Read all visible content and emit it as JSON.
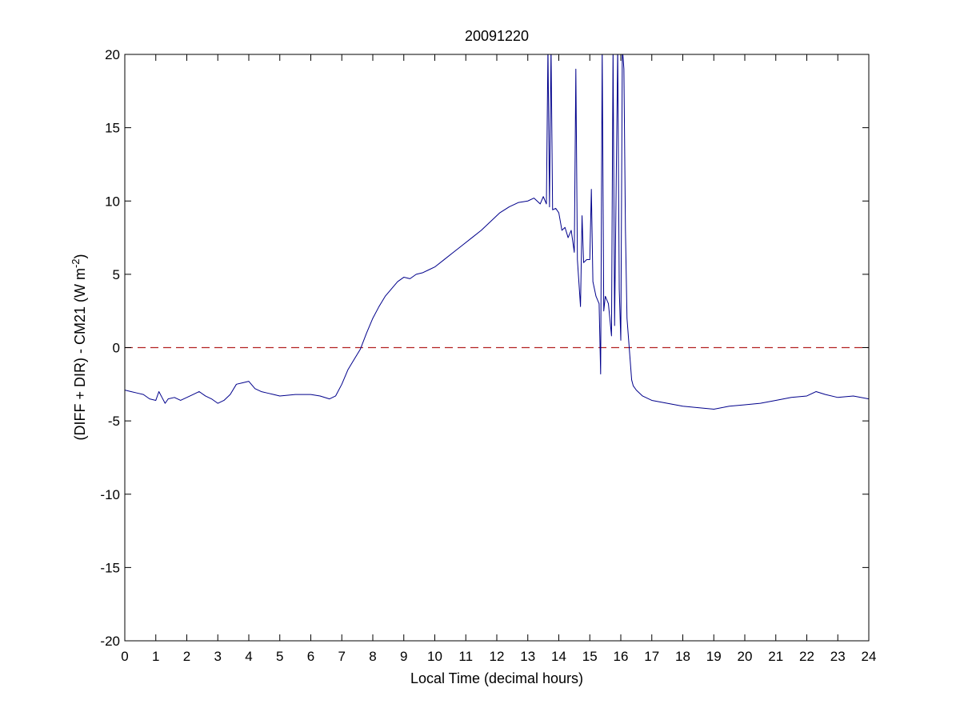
{
  "chart_data": {
    "type": "line",
    "title": "20091220",
    "xlabel": "Local Time (decimal hours)",
    "ylabel": {
      "main": "(DIFF + DIR) - CM21 (W m",
      "superscript": "-2",
      "close": ")"
    },
    "xlim": [
      0,
      24
    ],
    "ylim": [
      -20,
      20
    ],
    "xticks": [
      0,
      1,
      2,
      3,
      4,
      5,
      6,
      7,
      8,
      9,
      10,
      11,
      12,
      13,
      14,
      15,
      16,
      17,
      18,
      19,
      20,
      21,
      22,
      23,
      24
    ],
    "yticks": [
      -20,
      -15,
      -10,
      -5,
      0,
      5,
      10,
      15,
      20
    ],
    "grid": false,
    "reference_line": {
      "y": 0,
      "style": "dashed",
      "color": "#b22222"
    },
    "series": [
      {
        "color": "#00008b",
        "x": [
          0,
          0.2,
          0.4,
          0.6,
          0.8,
          1.0,
          1.1,
          1.2,
          1.3,
          1.4,
          1.6,
          1.8,
          2.0,
          2.2,
          2.4,
          2.6,
          2.8,
          3.0,
          3.2,
          3.4,
          3.6,
          3.8,
          4.0,
          4.2,
          4.4,
          4.6,
          4.8,
          5.0,
          5.5,
          6.0,
          6.3,
          6.6,
          6.8,
          7.0,
          7.2,
          7.4,
          7.6,
          7.8,
          8.0,
          8.2,
          8.4,
          8.6,
          8.8,
          9.0,
          9.2,
          9.4,
          9.6,
          9.8,
          10.0,
          10.3,
          10.6,
          10.9,
          11.2,
          11.5,
          11.8,
          12.1,
          12.4,
          12.7,
          13.0,
          13.2,
          13.4,
          13.5,
          13.6,
          13.65,
          13.7,
          13.75,
          13.8,
          13.9,
          14.0,
          14.1,
          14.2,
          14.3,
          14.4,
          14.5,
          14.55,
          14.6,
          14.7,
          14.75,
          14.8,
          14.9,
          15.0,
          15.05,
          15.1,
          15.2,
          15.3,
          15.35,
          15.4,
          15.45,
          15.5,
          15.6,
          15.7,
          15.75,
          15.8,
          15.9,
          15.95,
          16.0,
          16.05,
          16.1,
          16.15,
          16.2,
          16.3,
          16.35,
          16.4,
          16.5,
          16.7,
          17.0,
          17.5,
          18.0,
          18.5,
          19.0,
          19.5,
          20.0,
          20.5,
          21.0,
          21.5,
          22.0,
          22.3,
          22.6,
          23.0,
          23.5,
          24.0
        ],
        "y": [
          -2.9,
          -3.0,
          -3.1,
          -3.2,
          -3.5,
          -3.6,
          -3.0,
          -3.4,
          -3.8,
          -3.5,
          -3.4,
          -3.6,
          -3.4,
          -3.2,
          -3.0,
          -3.3,
          -3.5,
          -3.8,
          -3.6,
          -3.2,
          -2.5,
          -2.4,
          -2.3,
          -2.8,
          -3.0,
          -3.1,
          -3.2,
          -3.3,
          -3.2,
          -3.2,
          -3.3,
          -3.5,
          -3.3,
          -2.5,
          -1.5,
          -0.8,
          -0.1,
          1.0,
          2.0,
          2.8,
          3.5,
          4.0,
          4.5,
          4.8,
          4.7,
          5.0,
          5.1,
          5.3,
          5.5,
          6.0,
          6.5,
          7.0,
          7.5,
          8.0,
          8.6,
          9.2,
          9.6,
          9.9,
          10.0,
          10.2,
          9.8,
          10.3,
          9.8,
          20.5,
          9.6,
          20.5,
          9.4,
          9.5,
          9.2,
          8.0,
          8.2,
          7.5,
          8.0,
          6.5,
          19.0,
          6.0,
          2.8,
          9.0,
          5.8,
          6.0,
          6.0,
          10.8,
          4.5,
          3.5,
          3.0,
          -1.8,
          20.5,
          2.5,
          3.5,
          3.0,
          0.8,
          20.5,
          1.5,
          20.5,
          4.0,
          0.5,
          20.5,
          19.0,
          8.0,
          2.0,
          -0.8,
          -2.2,
          -2.6,
          -2.9,
          -3.3,
          -3.6,
          -3.8,
          -4.0,
          -4.1,
          -4.2,
          -4.0,
          -3.9,
          -3.8,
          -3.6,
          -3.4,
          -3.3,
          -3.0,
          -3.2,
          -3.4,
          -3.3,
          -3.5
        ]
      }
    ]
  }
}
